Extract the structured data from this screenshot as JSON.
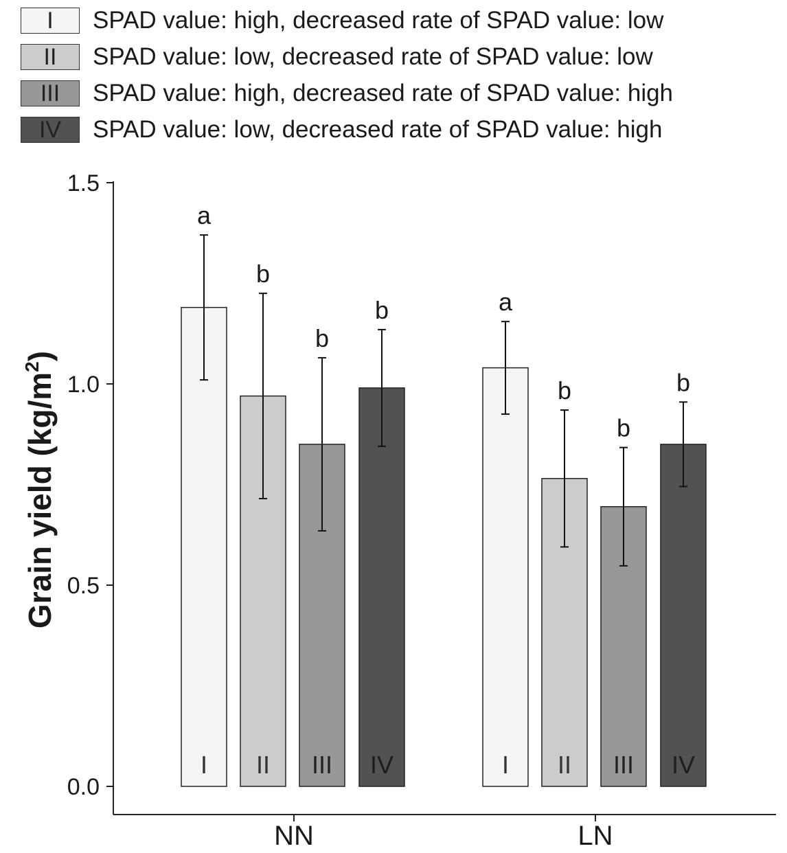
{
  "legend": {
    "items": [
      {
        "code": "I",
        "label": "SPAD value: high, decreased rate of SPAD value: low",
        "color": "#f5f5f5"
      },
      {
        "code": "II",
        "label": "SPAD value: low, decreased rate of SPAD value: low",
        "color": "#cccccc"
      },
      {
        "code": "III",
        "label": "SPAD value: high, decreased rate of SPAD value: high",
        "color": "#989898"
      },
      {
        "code": "IV",
        "label": "SPAD value: low, decreased rate of SPAD value: high",
        "color": "#525252"
      }
    ]
  },
  "chart_data": {
    "type": "bar",
    "title": "",
    "xlabel": "",
    "ylabel": "Grain yield (kg/m",
    "ylabel_superscript": "2",
    "ylabel_suffix": ")",
    "ylim": [
      0,
      1.5
    ],
    "yticks": [
      "0.0",
      "0.5",
      "1.0",
      "1.5"
    ],
    "categories": [
      "NN",
      "LN"
    ],
    "series": [
      {
        "name": "I",
        "color": "#f5f5f5",
        "values": [
          1.19,
          1.04
        ],
        "errors": [
          0.18,
          0.115
        ],
        "significance": [
          "a",
          "a"
        ]
      },
      {
        "name": "II",
        "color": "#cccccc",
        "values": [
          0.97,
          0.765
        ],
        "errors": [
          0.255,
          0.17
        ],
        "significance": [
          "b",
          "b"
        ]
      },
      {
        "name": "III",
        "color": "#989898",
        "values": [
          0.85,
          0.695
        ],
        "errors": [
          0.215,
          0.147
        ],
        "significance": [
          "b",
          "b"
        ]
      },
      {
        "name": "IV",
        "color": "#525252",
        "values": [
          0.99,
          0.85
        ],
        "errors": [
          0.145,
          0.105
        ],
        "significance": [
          "b",
          "b"
        ]
      }
    ]
  }
}
